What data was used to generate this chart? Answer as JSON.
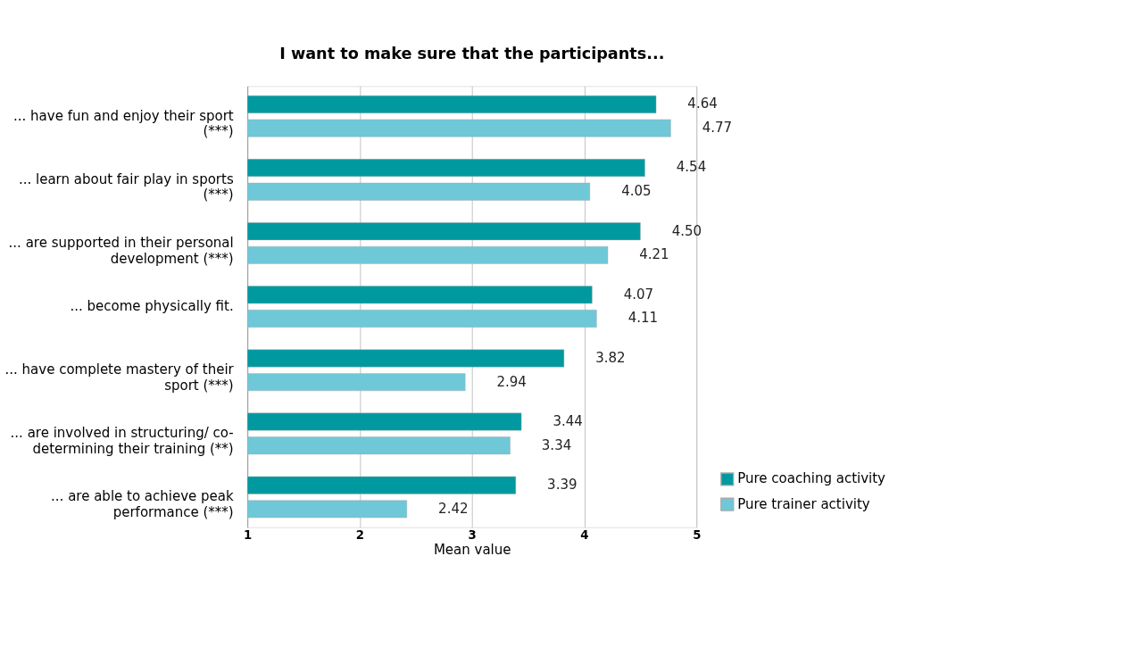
{
  "chart_data": {
    "type": "bar",
    "orientation": "horizontal",
    "title": "I want to make sure that the participants...",
    "xlabel": "Mean value",
    "categories": [
      "... have fun and enjoy their sport (***)",
      "... learn about fair play in sports (***)",
      "... are supported in their personal development (***)",
      "... become physically fit.",
      "... have complete mastery of their sport (***)",
      "... are involved in structuring/ co-determining their training (**)",
      "... are able to achieve peak performance (***)"
    ],
    "series": [
      {
        "name": "Pure coaching activity",
        "color": "#00999f",
        "values": [
          4.64,
          4.54,
          4.5,
          4.07,
          3.82,
          3.44,
          3.39
        ],
        "value_labels": [
          "4.64",
          "4.54",
          "4.50",
          "4.07",
          "3.82",
          "3.44",
          "3.39"
        ]
      },
      {
        "name": "Pure trainer activity",
        "color": "#6ec8d8",
        "values": [
          4.77,
          4.05,
          4.21,
          4.11,
          2.94,
          3.34,
          2.42
        ],
        "value_labels": [
          "4.77",
          "4.05",
          "4.21",
          "4.11",
          "2.94",
          "3.34",
          "2.42"
        ]
      }
    ],
    "xlim": [
      1,
      5
    ],
    "xticks": [
      1,
      2,
      3,
      4,
      5
    ],
    "grid": "x",
    "legend": "bottom right"
  }
}
